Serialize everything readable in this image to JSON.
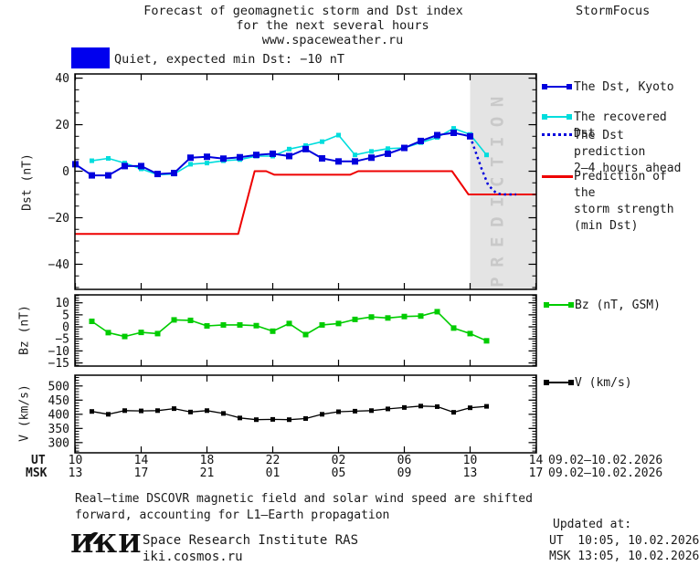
{
  "header": {
    "title_line1": "Forecast of geomagnetic storm and Dst index",
    "title_line2": "for the next several hours",
    "title_line3": "www.spaceweather.ru",
    "brand": "StormFocus"
  },
  "banner": {
    "swatch_color": "#0000ee",
    "text": "Quiet, expected min Dst: −10 nT"
  },
  "palette": {
    "dst_blue": "#0000dd",
    "recovered_cyan": "#00dddd",
    "prediction_dotted_blue": "#0000dd",
    "storm_red": "#ee0000",
    "bz_green": "#00cc00",
    "v_black": "#000000",
    "band_gray": "#e4e4e4",
    "band_text_gray": "#c9c9c9"
  },
  "legend": {
    "items": [
      {
        "key": "dst-kyoto",
        "lines": [
          "The Dst, Kyoto"
        ]
      },
      {
        "key": "recovered-dst",
        "lines": [
          "The recovered Dst"
        ]
      },
      {
        "key": "dst-prediction",
        "lines": [
          "The Dst prediction",
          "2–4 hours ahead"
        ]
      },
      {
        "key": "storm-strength",
        "lines": [
          "Prediction of the",
          "storm strength",
          "(min Dst)"
        ]
      }
    ],
    "bz_label": "Bz (nT, GSM)",
    "v_label": "V (km/s)"
  },
  "xaxis": {
    "row1_label": "UT",
    "row2_label": "MSK",
    "tick_hours": [
      0,
      4,
      8,
      12,
      16,
      20,
      24,
      28
    ],
    "row1_ticks": [
      "10",
      "14",
      "18",
      "22",
      "02",
      "06",
      "10",
      "14"
    ],
    "row2_ticks": [
      "13",
      "17",
      "21",
      "01",
      "05",
      "09",
      "13",
      "17"
    ],
    "row1_date": "09.02–10.02.2026",
    "row2_date": "09.02–10.02.2026"
  },
  "footnote": {
    "line1": "Real–time DSCOVR magnetic field and solar wind speed are shifted",
    "line2": "forward, accounting for L1–Earth propagation"
  },
  "footer": {
    "logo_text": "ИКИ",
    "institute": "Space Research Institute RAS",
    "site": "iki.cosmos.ru",
    "updated_label": "Updated at:",
    "updated_ut": "UT  10:05, 10.02.2026",
    "updated_msk": "MSK 13:05, 10.02.2026"
  },
  "chart_data": [
    {
      "id": "dst",
      "type": "line",
      "ylabel": "Dst (nT)",
      "ylim": [
        -50.8,
        41.8
      ],
      "yticks": [
        40,
        20,
        0,
        -20,
        -40
      ],
      "ytick_minor_step": 5,
      "xlim_hours": [
        0,
        28
      ],
      "prediction_band": {
        "x_start": 24,
        "x_end": 28,
        "label": "PREDICTION"
      },
      "series": [
        {
          "name": "Prediction of the storm strength (min Dst)",
          "color": "#ee0000",
          "line_style": "solid",
          "line_width": 2,
          "marker": "none",
          "x": [
            0,
            9.9,
            10.9,
            11.6,
            12.1,
            16.7,
            17.2,
            22.9,
            23.9,
            28
          ],
          "values": [
            -27,
            -27,
            0,
            0,
            -1.5,
            -1.5,
            0,
            0,
            -10,
            -10
          ]
        },
        {
          "name": "The recovered Dst",
          "color": "#00dddd",
          "line_style": "solid",
          "line_width": 1.6,
          "marker": "square",
          "marker_size": 5,
          "x": [
            1,
            2,
            3,
            4,
            5,
            6,
            7,
            8,
            9,
            10,
            11,
            12,
            13,
            14,
            15,
            16,
            17,
            18,
            19,
            20,
            21,
            22,
            23,
            24,
            25
          ],
          "values": [
            4.5,
            5.5,
            3.5,
            1,
            -1.5,
            -1.2,
            3,
            3.5,
            4.5,
            5,
            6.5,
            6.5,
            9.5,
            11,
            12.7,
            15.5,
            7,
            8.5,
            9.7,
            10,
            12.3,
            14.5,
            18.4,
            15.8,
            7
          ]
        },
        {
          "name": "The Dst, Kyoto",
          "color": "#0000dd",
          "line_style": "solid",
          "line_width": 2,
          "marker": "square",
          "marker_size": 7,
          "x": [
            0,
            1,
            2,
            3,
            4,
            5,
            6,
            7,
            8,
            9,
            10,
            11,
            12,
            13,
            14,
            15,
            16,
            17,
            18,
            19,
            20,
            21,
            22,
            23,
            24
          ],
          "values": [
            3,
            -1.8,
            -1.8,
            2.2,
            2.2,
            -1.2,
            -0.8,
            5.8,
            6.2,
            5.4,
            6,
            7,
            7.5,
            6.5,
            9.5,
            5.5,
            4.2,
            4.2,
            5.8,
            7.5,
            10,
            13,
            15.5,
            16.5,
            15
          ]
        },
        {
          "name": "The Dst prediction 2–4 hours ahead",
          "color": "#0000dd",
          "line_style": "dotted",
          "line_width": 2.5,
          "marker": "none",
          "x": [
            24,
            24.3,
            24.7,
            25.1,
            25.6,
            26,
            26.8
          ],
          "values": [
            15,
            9,
            1,
            -6,
            -9.5,
            -10,
            -10
          ]
        }
      ]
    },
    {
      "id": "bz",
      "type": "line",
      "ylabel": "Bz (nT)",
      "ylim": [
        -16.3,
        13.3
      ],
      "yticks": [
        10,
        5,
        0,
        -5,
        -10,
        -15
      ],
      "ytick_minor_step": 1,
      "xlim_hours": [
        0,
        28
      ],
      "series": [
        {
          "name": "Bz (nT, GSM)",
          "color": "#00cc00",
          "line_style": "solid",
          "line_width": 1.6,
          "marker": "square",
          "marker_size": 6,
          "x": [
            1,
            2,
            3,
            4,
            5,
            6,
            7,
            8,
            9,
            10,
            11,
            12,
            13,
            14,
            15,
            16,
            17,
            18,
            19,
            20,
            21,
            22,
            23,
            24,
            25
          ],
          "values": [
            2.3,
            -2.4,
            -4,
            -2.3,
            -2.8,
            2.9,
            2.7,
            0.4,
            0.8,
            0.8,
            0.5,
            -1.8,
            1.4,
            -3.2,
            0.8,
            1.4,
            3.1,
            4.1,
            3.7,
            4.3,
            4.5,
            6.3,
            -0.5,
            -2.8,
            -5.8
          ]
        }
      ]
    },
    {
      "id": "v",
      "type": "line",
      "ylabel": "V (km/s)",
      "ylim": [
        264,
        538
      ],
      "yticks": [
        500,
        450,
        400,
        350,
        300
      ],
      "ytick_minor_step": 10,
      "xlim_hours": [
        0,
        28
      ],
      "series": [
        {
          "name": "V (km/s)",
          "color": "#000000",
          "line_style": "solid",
          "line_width": 1.3,
          "marker": "square",
          "marker_size": 5,
          "x": [
            1,
            2,
            3,
            4,
            5,
            6,
            7,
            8,
            9,
            10,
            11,
            12,
            13,
            14,
            15,
            16,
            17,
            18,
            19,
            20,
            21,
            22,
            23,
            24,
            25
          ],
          "values": [
            410,
            400,
            413,
            412,
            413,
            420,
            408,
            413,
            403,
            387,
            381,
            382,
            381,
            385,
            400,
            409,
            411,
            413,
            419,
            424,
            429,
            427,
            407,
            423,
            428
          ]
        }
      ]
    }
  ]
}
